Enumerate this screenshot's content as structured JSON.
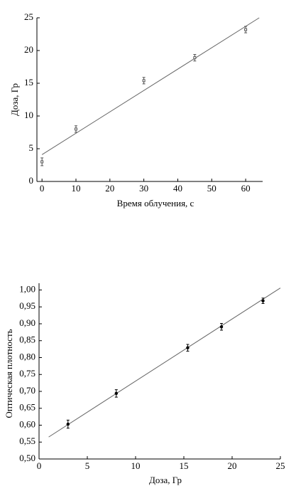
{
  "chart_data": [
    {
      "type": "scatter",
      "xlabel": "Время облучения, с",
      "ylabel": "Доза, Гр",
      "x": [
        0,
        10,
        30,
        45,
        60
      ],
      "series": [
        {
          "color": "#555555",
          "values": [
            3.0,
            8.0,
            15.4,
            18.9,
            23.2
          ],
          "errors": [
            0.6,
            0.5,
            0.5,
            0.5,
            0.5
          ]
        }
      ],
      "fit": {
        "color": "#666666",
        "x": [
          0,
          64
        ],
        "y": [
          4.1,
          25
        ]
      },
      "xlim": [
        -1.5,
        65
      ],
      "ylim": [
        0,
        25
      ],
      "xticks": [
        0,
        10,
        20,
        30,
        40,
        50,
        60
      ],
      "yticks": [
        0,
        5,
        10,
        15,
        20,
        25
      ]
    },
    {
      "type": "scatter",
      "xlabel": "Доза, Гр",
      "ylabel": "Оптическая плотность",
      "x": [
        3.0,
        8.0,
        15.4,
        18.9,
        23.2
      ],
      "series": [
        {
          "color": "#000000",
          "values": [
            0.603,
            0.694,
            0.829,
            0.891,
            0.968
          ],
          "errors": [
            0.012,
            0.011,
            0.01,
            0.01,
            0.008
          ]
        }
      ],
      "fit": {
        "color": "#666666",
        "x": [
          1,
          25
        ],
        "y": [
          0.565,
          1.006
        ]
      },
      "xlim": [
        0,
        25
      ],
      "ylim": [
        0.5,
        1.02
      ],
      "xticks": [
        0,
        5,
        10,
        15,
        20,
        25
      ],
      "yticks": [
        {
          "value": 0.5,
          "label": "0,50"
        },
        {
          "value": 0.55,
          "label": "0,55"
        },
        {
          "value": 0.6,
          "label": "0,60"
        },
        {
          "value": 0.65,
          "label": "0,65"
        },
        {
          "value": 0.7,
          "label": "0,70"
        },
        {
          "value": 0.75,
          "label": "0,75"
        },
        {
          "value": 0.8,
          "label": "0,80"
        },
        {
          "value": 0.85,
          "label": "0,85"
        },
        {
          "value": 0.9,
          "label": "0,90"
        },
        {
          "value": 0.95,
          "label": "0,95"
        },
        {
          "value": 1.0,
          "label": "1,00"
        }
      ]
    }
  ]
}
